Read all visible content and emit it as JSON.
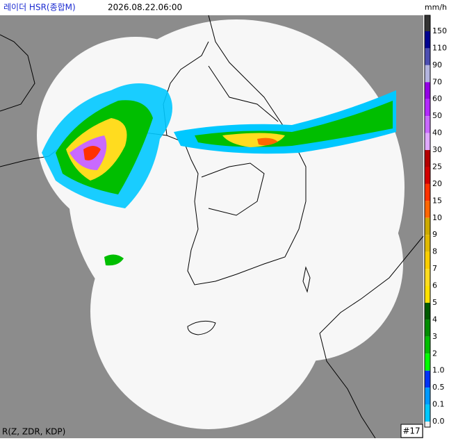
{
  "header": {
    "title": "레이더 HSR(종합M)",
    "datetime": "2026.08.22.06:00",
    "unit": "mm/h"
  },
  "legend": {
    "top_color": "#333333",
    "items": [
      {
        "label": "150",
        "color": "#000390"
      },
      {
        "label": "110",
        "color": "#4c4eb1"
      },
      {
        "label": "90",
        "color": "#b3b4de"
      },
      {
        "label": "70",
        "color": "#9300e4"
      },
      {
        "label": "60",
        "color": "#b329ff"
      },
      {
        "label": "50",
        "color": "#c969ff"
      },
      {
        "label": "40",
        "color": "#e0a9ff"
      },
      {
        "label": "30",
        "color": "#b40000"
      },
      {
        "label": "25",
        "color": "#d20000"
      },
      {
        "label": "20",
        "color": "#ff3200"
      },
      {
        "label": "15",
        "color": "#ff6600"
      },
      {
        "label": "10",
        "color": "#ccaa00"
      },
      {
        "label": "9",
        "color": "#e0b900"
      },
      {
        "label": "8",
        "color": "#f9cd00"
      },
      {
        "label": "7",
        "color": "#ffdc1f"
      },
      {
        "label": "6",
        "color": "#ffe100"
      },
      {
        "label": "5",
        "color": "#005a00"
      },
      {
        "label": "4",
        "color": "#008c00"
      },
      {
        "label": "3",
        "color": "#00be00"
      },
      {
        "label": "2",
        "color": "#00ff00"
      },
      {
        "label": "1.0",
        "color": "#0033f5"
      },
      {
        "label": "0.5",
        "color": "#0099ff"
      },
      {
        "label": "0.1",
        "color": "#00c8ff"
      },
      {
        "label": "0.0",
        "color": "#eeeeee"
      }
    ]
  },
  "footer": {
    "method": "R(Z, ZDR, KDP)",
    "frame": "#17"
  }
}
